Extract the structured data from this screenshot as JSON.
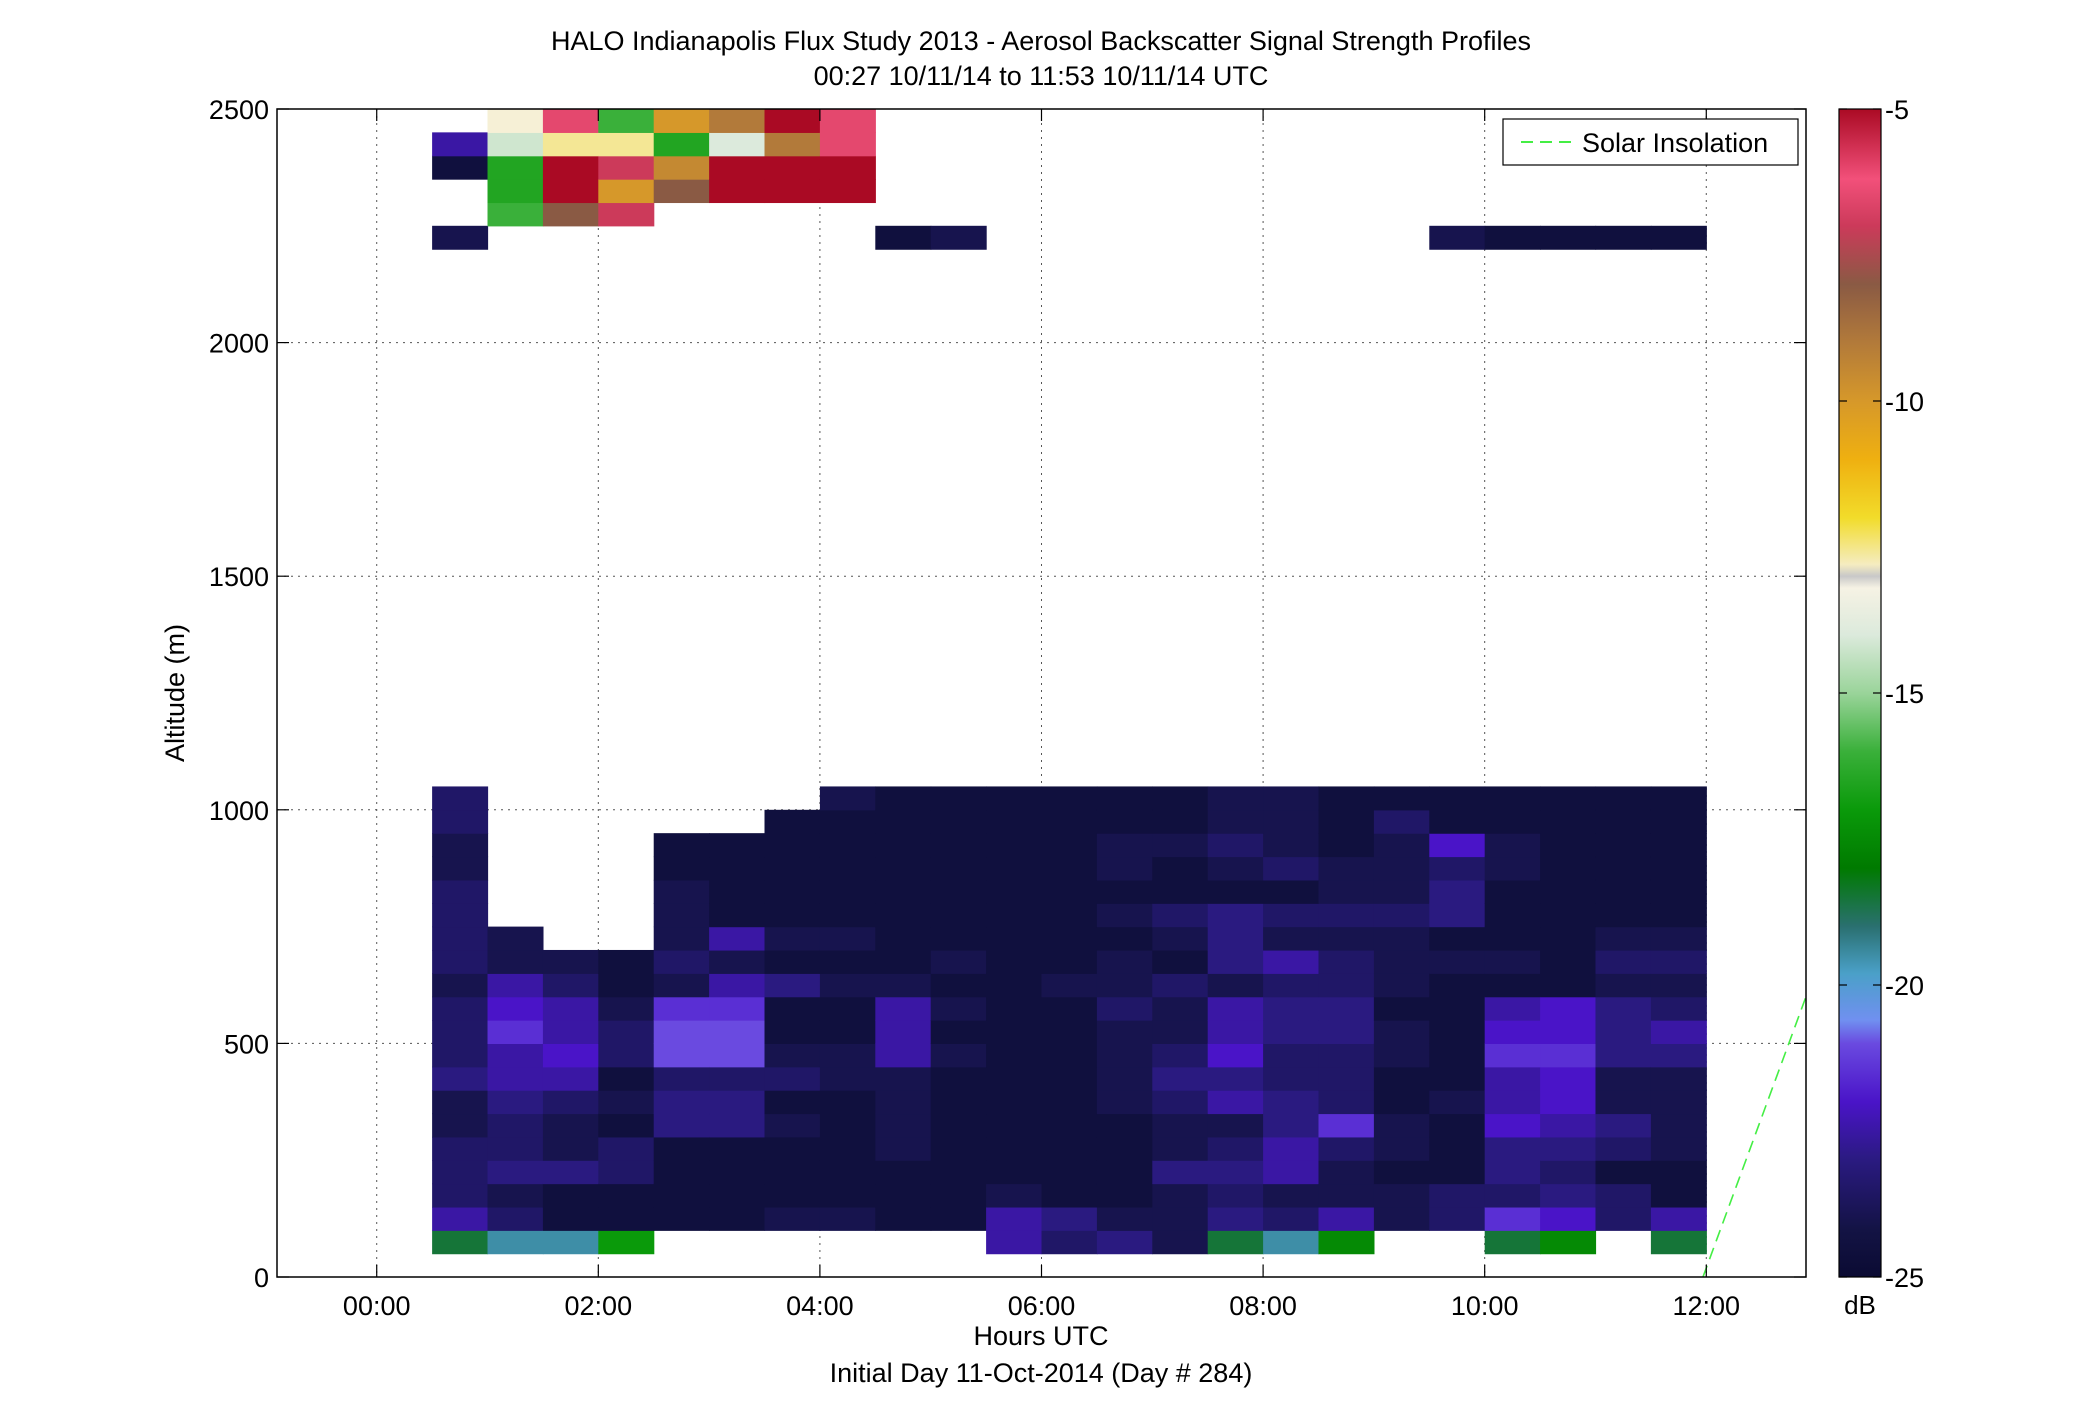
{
  "chart_data": {
    "type": "heatmap",
    "title": "HALO Indianapolis Flux Study 2013 - Aerosol Backscatter Signal Strength Profiles",
    "subtitle": "00:27 10/11/14 to 11:53 10/11/14  UTC",
    "xlabel": "Hours UTC",
    "xlabel2": "Initial Day 11-Oct-2014 (Day # 284)",
    "ylabel": "Altitude (m)",
    "xlim": [
      -0.9,
      12.9
    ],
    "ylim": [
      0,
      2500
    ],
    "x_ticks": [
      0,
      2,
      4,
      6,
      8,
      10,
      12
    ],
    "x_tick_labels": [
      "00:00",
      "02:00",
      "04:00",
      "06:00",
      "08:00",
      "10:00",
      "12:00"
    ],
    "y_ticks": [
      0,
      500,
      1000,
      1500,
      2000,
      2500
    ],
    "y_tick_labels": [
      "0",
      "500",
      "1000",
      "1500",
      "2000",
      "2500"
    ],
    "grid": true,
    "colorbar": {
      "label": "dB",
      "range": [
        -25,
        -5
      ],
      "ticks": [
        -5,
        -10,
        -15,
        -20,
        -25
      ],
      "tick_labels": [
        "-5",
        "-10",
        "-15",
        "-20",
        "-25"
      ]
    },
    "legend": {
      "position": "top-right",
      "entries": [
        {
          "name": "Solar Insolation",
          "color": "#44ee44",
          "style": "dashed"
        }
      ]
    },
    "solar_insolation_line": {
      "x": [
        11.97,
        12.9
      ],
      "y": [
        0,
        600
      ]
    },
    "time_hours": [
      0.5,
      1.0,
      1.5,
      2.0,
      2.5,
      3.0,
      3.5,
      4.0,
      4.5,
      5.0,
      5.5,
      6.0,
      6.5,
      7.0,
      7.5,
      8.0,
      8.5,
      9.0,
      9.5,
      10.0,
      10.5,
      11.0,
      11.5
    ],
    "bin_width_hours": 0.5,
    "altitude_bins_m": [
      50,
      100,
      150,
      200,
      250,
      300,
      350,
      400,
      450,
      500,
      550,
      600,
      650,
      700,
      750,
      800,
      850,
      900,
      950,
      1000,
      2200,
      2250,
      2300,
      2350,
      2400,
      2450
    ],
    "bin_height_m": 50,
    "signal_db": [
      [
        -18.5,
        -22.5,
        -23.5,
        -23.5,
        -23.5,
        -24,
        -24,
        -23,
        -23.5,
        -23.5,
        -23.5,
        -24,
        -23.5,
        -23.5,
        -23.5,
        -23.5,
        -24,
        -24,
        -23.5,
        -23.5,
        -24,
        null,
        null,
        -24.5,
        -22.5,
        null
      ],
      [
        -19.5,
        -23.5,
        -24,
        -23,
        -23.5,
        -23.5,
        -23,
        -22.5,
        -22.5,
        -21.5,
        -22,
        -22.5,
        -24,
        -24,
        null,
        null,
        null,
        null,
        null,
        null,
        null,
        -16,
        -16.5,
        -16.5,
        -14.2,
        -13
      ],
      [
        -19.5,
        -24.5,
        -24.5,
        -23,
        -24,
        -24,
        -23.5,
        -22.5,
        -22,
        -22.5,
        -22.5,
        -23.5,
        -24,
        null,
        null,
        null,
        null,
        null,
        null,
        null,
        null,
        -8,
        -5,
        -5,
        -12.5,
        -6.5
      ],
      [
        -17,
        -24.5,
        -24.5,
        -23.5,
        -23.5,
        -24.5,
        -24,
        -24.5,
        -23.5,
        -23.5,
        -24,
        -24.5,
        -24.5,
        null,
        null,
        null,
        null,
        null,
        null,
        null,
        null,
        -7,
        -10,
        -7,
        -12.5,
        -16
      ],
      [
        null,
        -24.5,
        -24.5,
        -24.5,
        -24.5,
        -23,
        -23,
        -23.5,
        -21,
        -21,
        -21.5,
        -24,
        -23.5,
        -24,
        -24,
        -24,
        -24.5,
        -24.5,
        null,
        null,
        null,
        null,
        -8,
        -9.5,
        -16.5,
        -10
      ],
      [
        null,
        -24.5,
        -24.5,
        -24.5,
        -24.5,
        -23,
        -23,
        -23.5,
        -21,
        -21,
        -21.5,
        -22.5,
        -24,
        -22.5,
        -24.5,
        -24.5,
        -24.5,
        -24.5,
        null,
        null,
        null,
        null,
        -5,
        -5,
        -14,
        -9
      ],
      [
        null,
        -24,
        -24.5,
        -24.5,
        -24.5,
        -24,
        -24.5,
        -23.5,
        -24,
        -24.5,
        -24.5,
        -23,
        -24.5,
        -24,
        -24.5,
        -24.5,
        -24.5,
        -24.5,
        -24.5,
        null,
        null,
        null,
        -5,
        -5,
        -9,
        -5
      ],
      [
        null,
        -24,
        -24.5,
        -24.5,
        -24.5,
        -24.5,
        -24.5,
        -24,
        -24,
        -24.5,
        -24.5,
        -24,
        -24.5,
        -24,
        -24.5,
        -24.5,
        -24.5,
        -24.5,
        -24.5,
        -24,
        null,
        null,
        -5,
        -5,
        -6.5,
        -6.5
      ],
      [
        null,
        -24.5,
        -24.5,
        -24.5,
        -24,
        -24,
        -24,
        -24,
        -22.5,
        -22.5,
        -22.5,
        -24,
        -24.5,
        -24.5,
        -24.5,
        -24.5,
        -24.5,
        -24.5,
        -24.5,
        -24.5,
        -24.5,
        null,
        null,
        null,
        null,
        null
      ],
      [
        null,
        -24.5,
        -24.5,
        -24.5,
        -24.5,
        -24.5,
        -24.5,
        -24.5,
        -24,
        -24.5,
        -24,
        -24.5,
        -24,
        -24.5,
        -24.5,
        -24.5,
        -24.5,
        -24.5,
        -24.5,
        -24.5,
        -24,
        null,
        null,
        null,
        null,
        null
      ],
      [
        -22.5,
        -22.5,
        -24,
        -24.5,
        -24.5,
        -24.5,
        -24.5,
        -24.5,
        -24.5,
        -24.5,
        -24.5,
        -24.5,
        -24.5,
        -24.5,
        -24.5,
        -24.5,
        -24.5,
        -24.5,
        -24.5,
        -24.5,
        null,
        null,
        null,
        null,
        null,
        null
      ],
      [
        -23.5,
        -23,
        -24.5,
        -24.5,
        -24.5,
        -24.5,
        -24.5,
        -24.5,
        -24.5,
        -24.5,
        -24.5,
        -24,
        -24.5,
        -24.5,
        -24.5,
        -24.5,
        -24.5,
        -24.5,
        -24.5,
        -24.5,
        null,
        null,
        null,
        null,
        null,
        null
      ],
      [
        -23,
        -24,
        -24.5,
        -24.5,
        -24.5,
        -24.5,
        -24,
        -24,
        -24,
        -24,
        -23.5,
        -24,
        -24,
        -24.5,
        -24,
        -24.5,
        -24,
        -24,
        -24.5,
        -24.5,
        null,
        null,
        null,
        null,
        null,
        null
      ],
      [
        -24,
        -24,
        -24,
        -23,
        -24,
        -24,
        -23.5,
        -23,
        -23.5,
        -24,
        -24,
        -23.5,
        -24.5,
        -24,
        -23.5,
        -24.5,
        -24.5,
        -24,
        -24.5,
        -24.5,
        null,
        null,
        null,
        null,
        null,
        null
      ],
      [
        -18.5,
        -23,
        -23.5,
        -23,
        -23.5,
        -24,
        -22.5,
        -23,
        -22,
        -22.5,
        -22.5,
        -24,
        -23,
        -23,
        -23,
        -24.5,
        -24,
        -23.5,
        -24,
        -24,
        null,
        null,
        null,
        null,
        null,
        null
      ],
      [
        -19.5,
        -23.5,
        -24,
        -22.5,
        -22.5,
        -23,
        -23,
        -23.5,
        -23.5,
        -23,
        -23,
        -23.5,
        -22.5,
        -24,
        -23.5,
        -24.5,
        -23.5,
        -24,
        -24,
        -24,
        null,
        null,
        null,
        null,
        null,
        null
      ],
      [
        -17.5,
        -22.5,
        -24,
        -24,
        -23.5,
        -21.5,
        -23.5,
        -23.5,
        -23.5,
        -23,
        -23,
        -23.5,
        -23.5,
        -24,
        -23.5,
        -24,
        -24,
        -24.5,
        -24.5,
        -24.5,
        null,
        null,
        null,
        null,
        null,
        null
      ],
      [
        null,
        -24,
        -24,
        -24.5,
        -24,
        -24,
        -24.5,
        -24.5,
        -24,
        -24,
        -24.5,
        -24,
        -24,
        -24,
        -23.5,
        -24,
        -24,
        -24,
        -23.5,
        -24.5,
        null,
        null,
        null,
        null,
        null,
        null
      ],
      [
        null,
        -23.5,
        -23.5,
        -24.5,
        -24.5,
        -24.5,
        -24,
        -24.5,
        -24.5,
        -24.5,
        -24.5,
        -24.5,
        -24,
        -24.5,
        -23,
        -23,
        -23.5,
        -22,
        -24.5,
        -24.5,
        -24,
        null,
        null,
        null,
        null,
        null
      ],
      [
        -18.5,
        -21.5,
        -23.5,
        -23,
        -23,
        -22,
        -22.5,
        -22.5,
        -21.5,
        -22,
        -22.5,
        -24.5,
        -24,
        -24.5,
        -24.5,
        -24.5,
        -24,
        -24,
        -24.5,
        -24.5,
        -24.5,
        null,
        null,
        null,
        null,
        null
      ],
      [
        -17.5,
        -22,
        -23,
        -23.5,
        -23,
        -22.5,
        -22,
        -22,
        -21.5,
        -22,
        -22,
        -24.5,
        -24.5,
        -24.5,
        -24.5,
        -24.5,
        -24.5,
        -24.5,
        -24.5,
        -24.5,
        -24.5,
        null,
        null,
        null,
        null,
        null
      ],
      [
        null,
        -23.5,
        -23.5,
        -24.5,
        -23.5,
        -23,
        -24,
        -24,
        -23,
        -23,
        -23,
        -24,
        -23.5,
        -24,
        -24.5,
        -24.5,
        -24.5,
        -24.5,
        -24.5,
        -24.5,
        -24.5,
        null,
        null,
        null,
        null,
        null
      ],
      [
        -18.5,
        -22.5,
        -24.5,
        -24.5,
        -24,
        -24,
        -24,
        -24,
        -23,
        -22.5,
        -23.5,
        -24,
        -23.5,
        -24,
        -24.5,
        -24.5,
        -24.5,
        -24.5,
        -24.5,
        -24.5,
        -24.5,
        null,
        null,
        null,
        null,
        null
      ]
    ]
  }
}
